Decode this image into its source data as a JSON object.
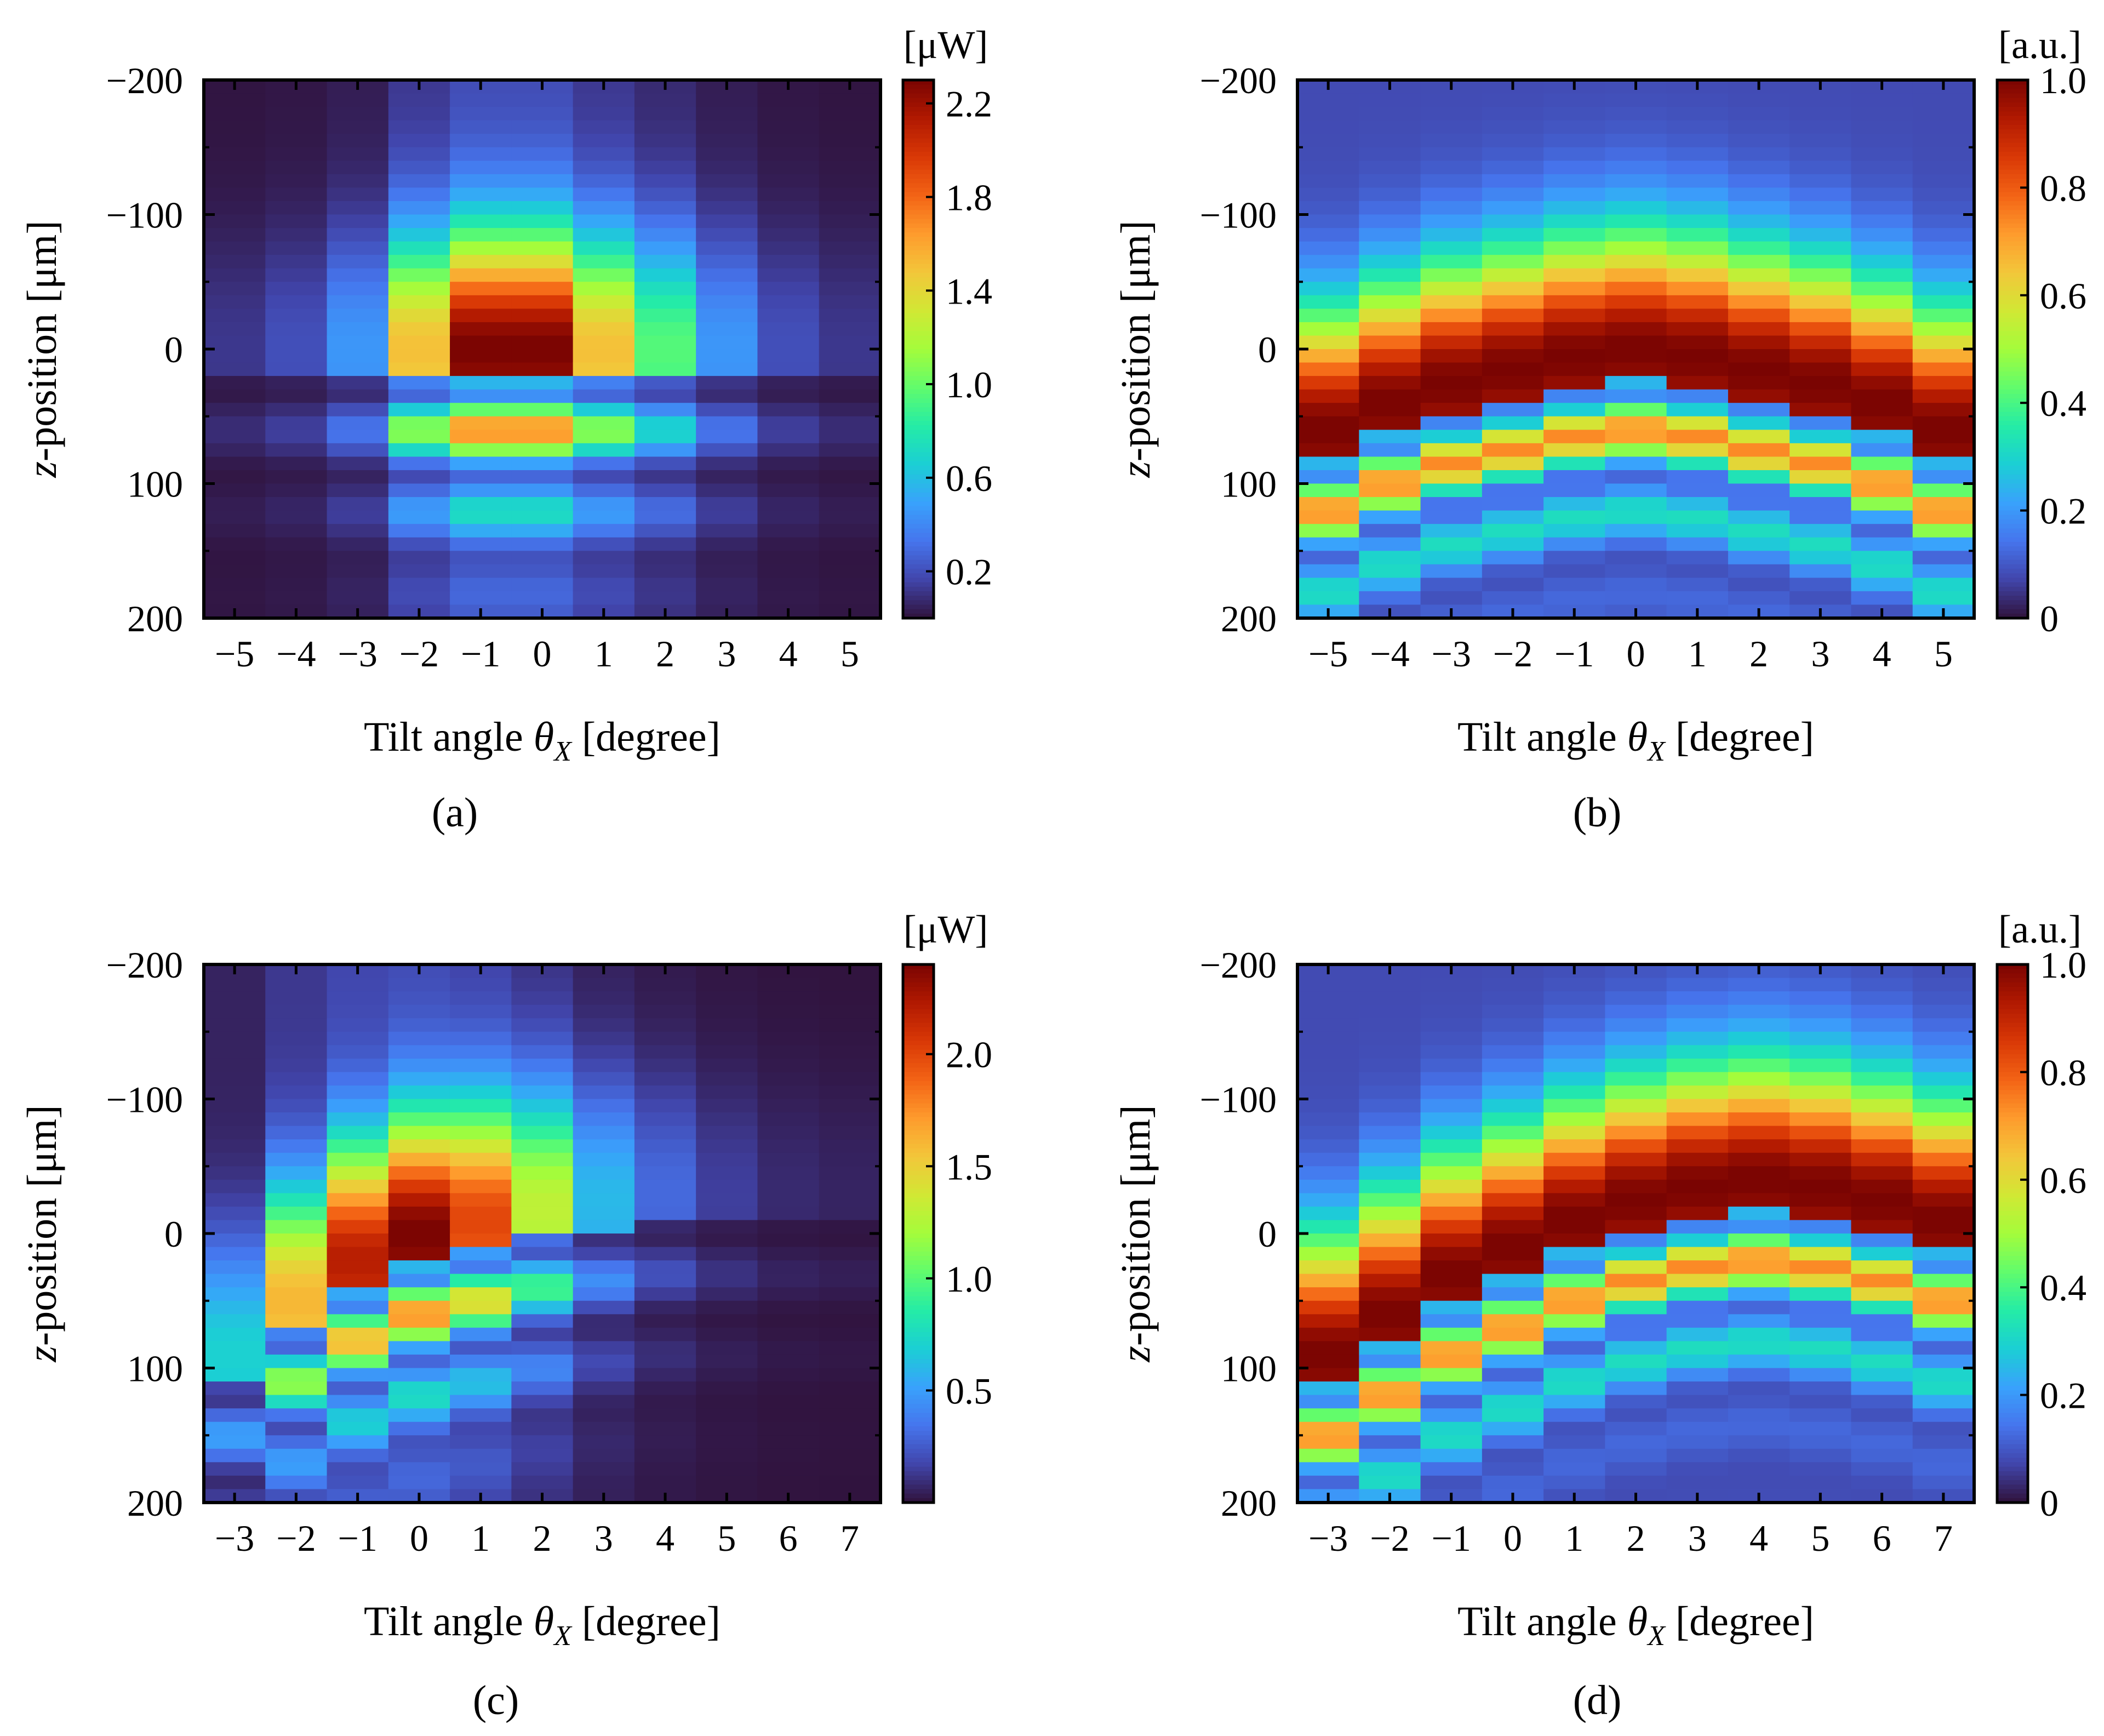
{
  "figure": {
    "colormap": [
      "#30123b",
      "#4145ab",
      "#4675ed",
      "#39a2fc",
      "#1bcfd4",
      "#24eca6",
      "#61fc6c",
      "#a4fc3b",
      "#d1e834",
      "#f3c63a",
      "#fe9b2d",
      "#f36315",
      "#d93806",
      "#b11901",
      "#7a0402"
    ]
  },
  "chart_data": [
    {
      "id": "a",
      "type": "heatmap",
      "caption": "(a)",
      "xlabel_prefix": "Tilt angle ",
      "xlabel_var": "θ",
      "xlabel_sub": "X",
      "xlabel_unit": "[degree]",
      "ylabel_var": "z",
      "ylabel_rest": "-position  [μm]",
      "x": [
        -5,
        -4,
        -3,
        -2,
        -1,
        0,
        1,
        2,
        3,
        4,
        5
      ],
      "x_tick_labels": [
        "−5",
        "−4",
        "−3",
        "−2",
        "−1",
        "0",
        "1",
        "2",
        "3",
        "4",
        "5"
      ],
      "y_ticks": [
        -200,
        -100,
        0,
        100,
        200
      ],
      "y_tick_labels": [
        "−200",
        "−100",
        "0",
        "100",
        "200"
      ],
      "ylim": [
        -200,
        200
      ],
      "colorbar": {
        "unit": "[μW]",
        "min": 0,
        "max": 2.3,
        "ticks": [
          0.2,
          0.6,
          1.0,
          1.4,
          1.8,
          2.2
        ],
        "tick_labels": [
          "0.2",
          "0.6",
          "1.0",
          "1.4",
          "1.8",
          "2.2"
        ]
      },
      "model": {
        "peak": [
          0.12,
          0.2,
          0.45,
          1.5,
          2.3,
          2.3,
          1.5,
          0.95,
          0.45,
          0.2,
          0.12
        ],
        "center": [
          0,
          0,
          0,
          0,
          0,
          0,
          0,
          0,
          0,
          0,
          0
        ],
        "fringe": true
      }
    },
    {
      "id": "b",
      "type": "heatmap",
      "caption": "(b)",
      "xlabel_prefix": "Tilt angle ",
      "xlabel_var": "θ",
      "xlabel_sub": "X",
      "xlabel_unit": "[degree]",
      "ylabel_var": "z",
      "ylabel_rest": "-position  [μm]",
      "x": [
        -5,
        -4,
        -3,
        -2,
        -1,
        0,
        1,
        2,
        3,
        4,
        5
      ],
      "x_tick_labels": [
        "−5",
        "−4",
        "−3",
        "−2",
        "−1",
        "0",
        "1",
        "2",
        "3",
        "4",
        "5"
      ],
      "y_ticks": [
        -200,
        -100,
        0,
        100,
        200
      ],
      "y_tick_labels": [
        "−200",
        "−100",
        "0",
        "100",
        "200"
      ],
      "ylim": [
        -200,
        200
      ],
      "colorbar": {
        "unit": "[a.u.]",
        "min": 0,
        "max": 1.0,
        "ticks": [
          0,
          0.2,
          0.4,
          0.6,
          0.8,
          1.0
        ],
        "tick_labels": [
          "0",
          "0.2",
          "0.4",
          "0.6",
          "0.8",
          "1.0"
        ]
      },
      "model": {
        "peak": [
          1,
          1,
          1,
          1,
          1,
          1,
          1,
          1,
          1,
          1,
          1
        ],
        "center": [
          60,
          40,
          25,
          15,
          5,
          0,
          5,
          15,
          25,
          40,
          60
        ],
        "fringe": true
      }
    },
    {
      "id": "c",
      "type": "heatmap",
      "caption": "(c)",
      "xlabel_prefix": "Tilt angle ",
      "xlabel_var": "θ",
      "xlabel_sub": "X",
      "xlabel_unit": "[degree]",
      "ylabel_var": "z",
      "ylabel_rest": "-position  [μm]",
      "x": [
        -3,
        -2,
        -1,
        0,
        1,
        2,
        3,
        4,
        5,
        6,
        7
      ],
      "x_tick_labels": [
        "−3",
        "−2",
        "−1",
        "0",
        "1",
        "2",
        "3",
        "4",
        "5",
        "6",
        "7"
      ],
      "y_ticks": [
        -200,
        -100,
        0,
        100,
        200
      ],
      "y_tick_labels": [
        "−200",
        "−100",
        "0",
        "100",
        "200"
      ],
      "ylim": [
        -200,
        200
      ],
      "colorbar": {
        "unit": "[μW]",
        "min": 0,
        "max": 2.4,
        "ticks": [
          0.5,
          1.0,
          1.5,
          2.0
        ],
        "tick_labels": [
          "0.5",
          "1.0",
          "1.5",
          "2.0"
        ]
      },
      "model": {
        "peak": [
          0.7,
          1.6,
          2.2,
          2.4,
          2.0,
          1.3,
          0.6,
          0.3,
          0.15,
          0.08,
          0.06
        ],
        "center": [
          90,
          50,
          20,
          0,
          -10,
          -20,
          -25,
          -30,
          -30,
          -30,
          -30
        ],
        "fringe": true
      }
    },
    {
      "id": "d",
      "type": "heatmap",
      "caption": "(d)",
      "xlabel_prefix": "Tilt angle ",
      "xlabel_var": "θ",
      "xlabel_sub": "X",
      "xlabel_unit": "[degree]",
      "ylabel_var": "z",
      "ylabel_rest": "-position  [μm]",
      "x": [
        -3,
        -2,
        -1,
        0,
        1,
        2,
        3,
        4,
        5,
        6,
        7
      ],
      "x_tick_labels": [
        "−3",
        "−2",
        "−1",
        "0",
        "1",
        "2",
        "3",
        "4",
        "5",
        "6",
        "7"
      ],
      "y_ticks": [
        -200,
        -100,
        0,
        100,
        200
      ],
      "y_tick_labels": [
        "−200",
        "−100",
        "0",
        "100",
        "200"
      ],
      "ylim": [
        -200,
        200
      ],
      "colorbar": {
        "unit": "[a.u.]",
        "min": 0,
        "max": 1.0,
        "ticks": [
          0,
          0.2,
          0.4,
          0.6,
          0.8,
          1.0
        ],
        "tick_labels": [
          "0",
          "0.2",
          "0.4",
          "0.6",
          "0.8",
          "1.0"
        ]
      },
      "model": {
        "peak": [
          1,
          1,
          1,
          1,
          1,
          1,
          1,
          1,
          1,
          1,
          1
        ],
        "center": [
          90,
          60,
          30,
          10,
          -10,
          -25,
          -35,
          -40,
          -35,
          -25,
          -10
        ],
        "fringe": true
      }
    }
  ]
}
